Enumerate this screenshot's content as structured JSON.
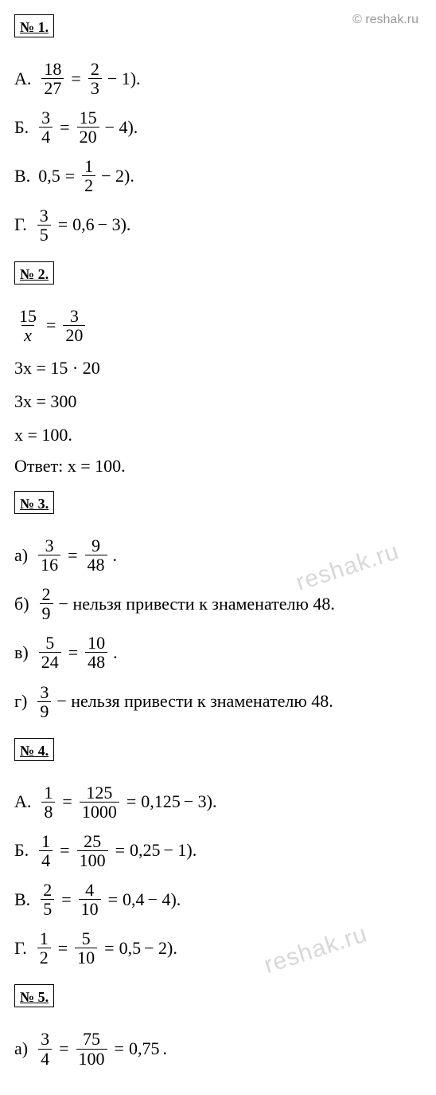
{
  "copyright": "© reshak.ru",
  "watermark": "reshak.ru",
  "sections": {
    "s1": {
      "title": "№ 1."
    },
    "s2": {
      "title": "№ 2."
    },
    "s3": {
      "title": "№ 3."
    },
    "s4": {
      "title": "№ 4."
    },
    "s5": {
      "title": "№ 5."
    }
  },
  "p1": {
    "a": {
      "label": "А.",
      "n1": "18",
      "d1": "27",
      "eq": "=",
      "n2": "2",
      "d2": "3",
      "tail": " − 1)."
    },
    "b": {
      "label": "Б.",
      "n1": "3",
      "d1": "4",
      "eq": "=",
      "n2": "15",
      "d2": "20",
      "tail": " − 4)."
    },
    "v": {
      "label": "В.",
      "lhs": "0,5",
      "eq": "=",
      "n2": "1",
      "d2": "2",
      "tail": " − 2)."
    },
    "g": {
      "label": "Г.",
      "n1": "3",
      "d1": "5",
      "eq": "=",
      "rhs": "0,6",
      "tail": " − 3)."
    }
  },
  "p2": {
    "eq1": {
      "n1": "15",
      "d1": "x",
      "eq": "=",
      "n2": "3",
      "d2": "20"
    },
    "l2": "3x = 15 · 20",
    "l3": "3x = 300",
    "l4": "x = 100.",
    "ans_label": "Ответ:",
    "ans_val": " x = 100."
  },
  "p3": {
    "a": {
      "label": "а)",
      "n1": "3",
      "d1": "16",
      "eq": "=",
      "n2": "9",
      "d2": "48",
      "tail": "."
    },
    "b": {
      "label": "б)",
      "n1": "2",
      "d1": "9",
      "tail": " − нельзя привести к знаменателю 48."
    },
    "v": {
      "label": "в)",
      "n1": "5",
      "d1": "24",
      "eq": "=",
      "n2": "10",
      "d2": "48",
      "tail": "."
    },
    "g": {
      "label": "г)",
      "n1": "3",
      "d1": "9",
      "tail": " − нельзя привести к знаменателю 48."
    }
  },
  "p4": {
    "a": {
      "label": "А.",
      "n1": "1",
      "d1": "8",
      "eq": "=",
      "n2": "125",
      "d2": "1000",
      "eq2": "=",
      "rhs": "0,125",
      "tail": " − 3)."
    },
    "b": {
      "label": "Б.",
      "n1": "1",
      "d1": "4",
      "eq": "=",
      "n2": "25",
      "d2": "100",
      "eq2": "=",
      "rhs": "0,25",
      "tail": " − 1)."
    },
    "v": {
      "label": "В.",
      "n1": "2",
      "d1": "5",
      "eq": "=",
      "n2": "4",
      "d2": "10",
      "eq2": "=",
      "rhs": "0,4",
      "tail": " − 4)."
    },
    "g": {
      "label": "Г.",
      "n1": "1",
      "d1": "2",
      "eq": "=",
      "n2": "5",
      "d2": "10",
      "eq2": "=",
      "rhs": "0,5",
      "tail": " − 2)."
    }
  },
  "p5": {
    "a": {
      "label": "а)",
      "n1": "3",
      "d1": "4",
      "eq": "=",
      "n2": "75",
      "d2": "100",
      "eq2": "=",
      "rhs": "0,75",
      "tail": "."
    }
  }
}
